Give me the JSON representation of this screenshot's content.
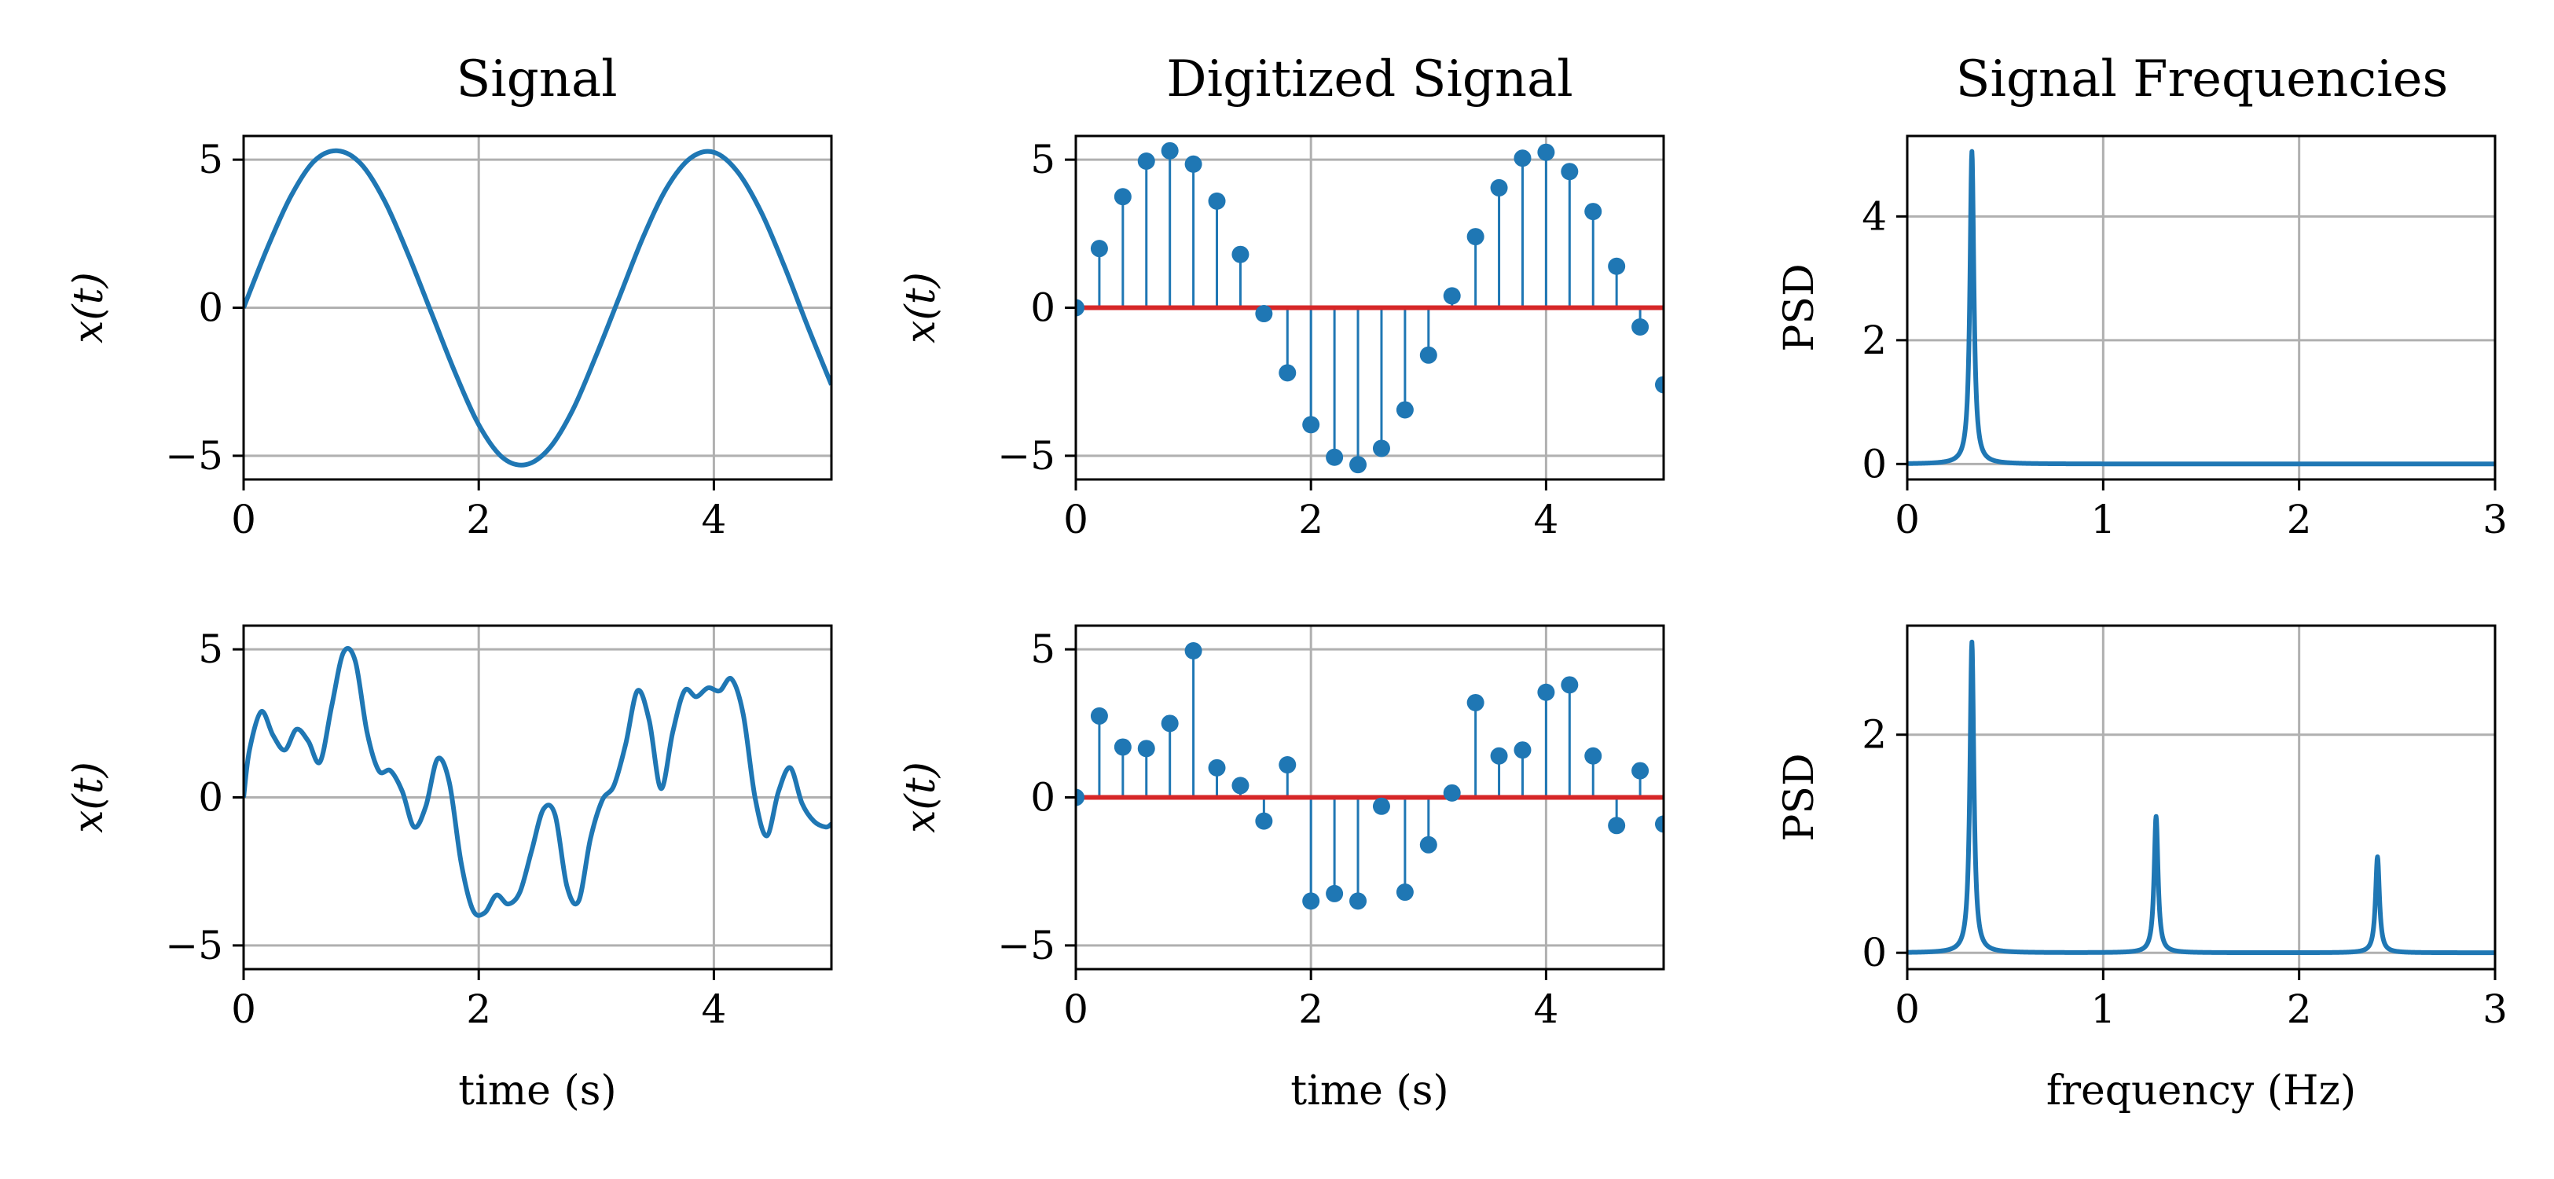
{
  "figure": {
    "column_titles": [
      "Signal",
      "Digitized Signal",
      "Signal Frequencies"
    ],
    "colors": {
      "series": "#1f77b4",
      "baseline": "#d62728",
      "grid": "#b0b0b0",
      "axes": "#000000"
    }
  },
  "chart_data": [
    {
      "id": "signal-top",
      "type": "line",
      "title": "Signal",
      "xlabel": "",
      "ylabel": "x(t)",
      "xlim": [
        0,
        5
      ],
      "ylim": [
        -5.8,
        5.8
      ],
      "xticks": [
        "0",
        "2",
        "4"
      ],
      "yticks": [
        "5",
        "0",
        "−5"
      ],
      "grid": true,
      "series": [
        {
          "x": [
            0,
            0.2,
            0.4,
            0.6,
            0.8,
            1.0,
            1.2,
            1.4,
            1.6,
            1.8,
            2.0,
            2.2,
            2.4,
            2.6,
            2.8,
            3.0,
            3.2,
            3.4,
            3.6,
            3.8,
            4.0,
            4.2,
            4.4,
            4.6,
            4.8,
            5.0
          ],
          "y": [
            0,
            2.0,
            3.75,
            4.95,
            5.3,
            4.85,
            3.6,
            1.8,
            -0.2,
            -2.2,
            -3.95,
            -5.05,
            -5.3,
            -4.75,
            -3.45,
            -1.6,
            0.4,
            2.4,
            4.05,
            5.05,
            5.25,
            4.6,
            3.25,
            1.4,
            -0.65,
            -2.6
          ]
        }
      ]
    },
    {
      "id": "digitized-top",
      "type": "scatter",
      "title": "Digitized Signal",
      "xlabel": "",
      "ylabel": "x(t)",
      "xlim": [
        0,
        5
      ],
      "ylim": [
        -5.8,
        5.8
      ],
      "xticks": [
        "0",
        "2",
        "4"
      ],
      "yticks": [
        "5",
        "0",
        "−5"
      ],
      "grid": true,
      "series": [
        {
          "x": [
            0,
            0.2,
            0.4,
            0.6,
            0.8,
            1.0,
            1.2,
            1.4,
            1.6,
            1.8,
            2.0,
            2.2,
            2.4,
            2.6,
            2.8,
            3.0,
            3.2,
            3.4,
            3.6,
            3.8,
            4.0,
            4.2,
            4.4,
            4.6,
            4.8,
            5.0
          ],
          "y": [
            0,
            2.0,
            3.75,
            4.95,
            5.3,
            4.85,
            3.6,
            1.8,
            -0.2,
            -2.2,
            -3.95,
            -5.05,
            -5.3,
            -4.75,
            -3.45,
            -1.6,
            0.4,
            2.4,
            4.05,
            5.05,
            5.25,
            4.6,
            3.25,
            1.4,
            -0.65,
            -2.6
          ]
        }
      ]
    },
    {
      "id": "psd-top",
      "type": "line",
      "title": "Signal Frequencies",
      "xlabel": "",
      "ylabel": "PSD",
      "xlim": [
        0,
        3
      ],
      "ylim": [
        -0.25,
        5.3
      ],
      "xticks": [
        "0",
        "1",
        "2",
        "3"
      ],
      "yticks": [
        "4",
        "2",
        "0"
      ],
      "grid": true,
      "peaks": [
        {
          "frequency": 0.33,
          "height": 5.05
        }
      ]
    },
    {
      "id": "signal-bottom",
      "type": "line",
      "title": "",
      "xlabel": "time (s)",
      "ylabel": "x(t)",
      "xlim": [
        0,
        5
      ],
      "ylim": [
        -5.8,
        5.8
      ],
      "xticks": [
        "0",
        "2",
        "4"
      ],
      "yticks": [
        "5",
        "0",
        "−5"
      ],
      "grid": true,
      "series": [
        {
          "x": [
            0,
            0.05,
            0.15,
            0.25,
            0.35,
            0.45,
            0.55,
            0.65,
            0.75,
            0.85,
            0.95,
            1.05,
            1.15,
            1.25,
            1.35,
            1.45,
            1.55,
            1.65,
            1.75,
            1.85,
            1.95,
            2.05,
            2.15,
            2.25,
            2.35,
            2.45,
            2.55,
            2.65,
            2.75,
            2.85,
            2.95,
            3.05,
            3.15,
            3.25,
            3.35,
            3.45,
            3.55,
            3.65,
            3.75,
            3.85,
            3.95,
            4.05,
            4.15,
            4.25,
            4.35,
            4.45,
            4.55,
            4.65,
            4.75,
            4.85,
            4.95,
            5.0
          ],
          "y": [
            0,
            1.6,
            2.9,
            2.1,
            1.6,
            2.3,
            1.9,
            1.2,
            3.1,
            4.9,
            4.6,
            2.2,
            0.9,
            0.9,
            0.2,
            -1.0,
            -0.3,
            1.3,
            0.5,
            -2.2,
            -3.8,
            -3.9,
            -3.3,
            -3.6,
            -3.2,
            -1.8,
            -0.4,
            -0.6,
            -3.0,
            -3.5,
            -1.4,
            -0.1,
            0.4,
            1.8,
            3.6,
            2.6,
            0.3,
            2.2,
            3.6,
            3.4,
            3.7,
            3.6,
            4.0,
            2.8,
            0.0,
            -1.3,
            0.2,
            1.0,
            -0.2,
            -0.8,
            -1.0,
            -0.9
          ]
        }
      ]
    },
    {
      "id": "digitized-bottom",
      "type": "scatter",
      "title": "",
      "xlabel": "time (s)",
      "ylabel": "x(t)",
      "xlim": [
        0,
        5
      ],
      "ylim": [
        -5.8,
        5.8
      ],
      "xticks": [
        "0",
        "2",
        "4"
      ],
      "yticks": [
        "5",
        "0",
        "−5"
      ],
      "grid": true,
      "series": [
        {
          "x": [
            0,
            0.2,
            0.4,
            0.6,
            0.8,
            1.0,
            1.2,
            1.4,
            1.6,
            1.8,
            2.0,
            2.2,
            2.4,
            2.6,
            2.8,
            3.0,
            3.2,
            3.4,
            3.6,
            3.8,
            4.0,
            4.2,
            4.4,
            4.6,
            4.8,
            5.0
          ],
          "y": [
            0,
            2.75,
            1.7,
            1.65,
            2.5,
            4.95,
            1.0,
            0.4,
            -0.8,
            1.1,
            -3.5,
            -3.25,
            -3.5,
            -0.3,
            -3.2,
            -1.6,
            0.15,
            3.2,
            1.4,
            1.6,
            3.55,
            3.8,
            1.4,
            -0.95,
            0.9,
            -0.9
          ]
        }
      ]
    },
    {
      "id": "psd-bottom",
      "type": "line",
      "title": "",
      "xlabel": "frequency (Hz)",
      "ylabel": "PSD",
      "xlim": [
        0,
        3
      ],
      "ylim": [
        -0.15,
        3.0
      ],
      "xticks": [
        "0",
        "1",
        "2",
        "3"
      ],
      "yticks": [
        "2",
        "0"
      ],
      "grid": true,
      "peaks": [
        {
          "frequency": 0.33,
          "height": 2.85
        },
        {
          "frequency": 1.27,
          "height": 1.25
        },
        {
          "frequency": 2.4,
          "height": 0.88
        }
      ]
    }
  ]
}
